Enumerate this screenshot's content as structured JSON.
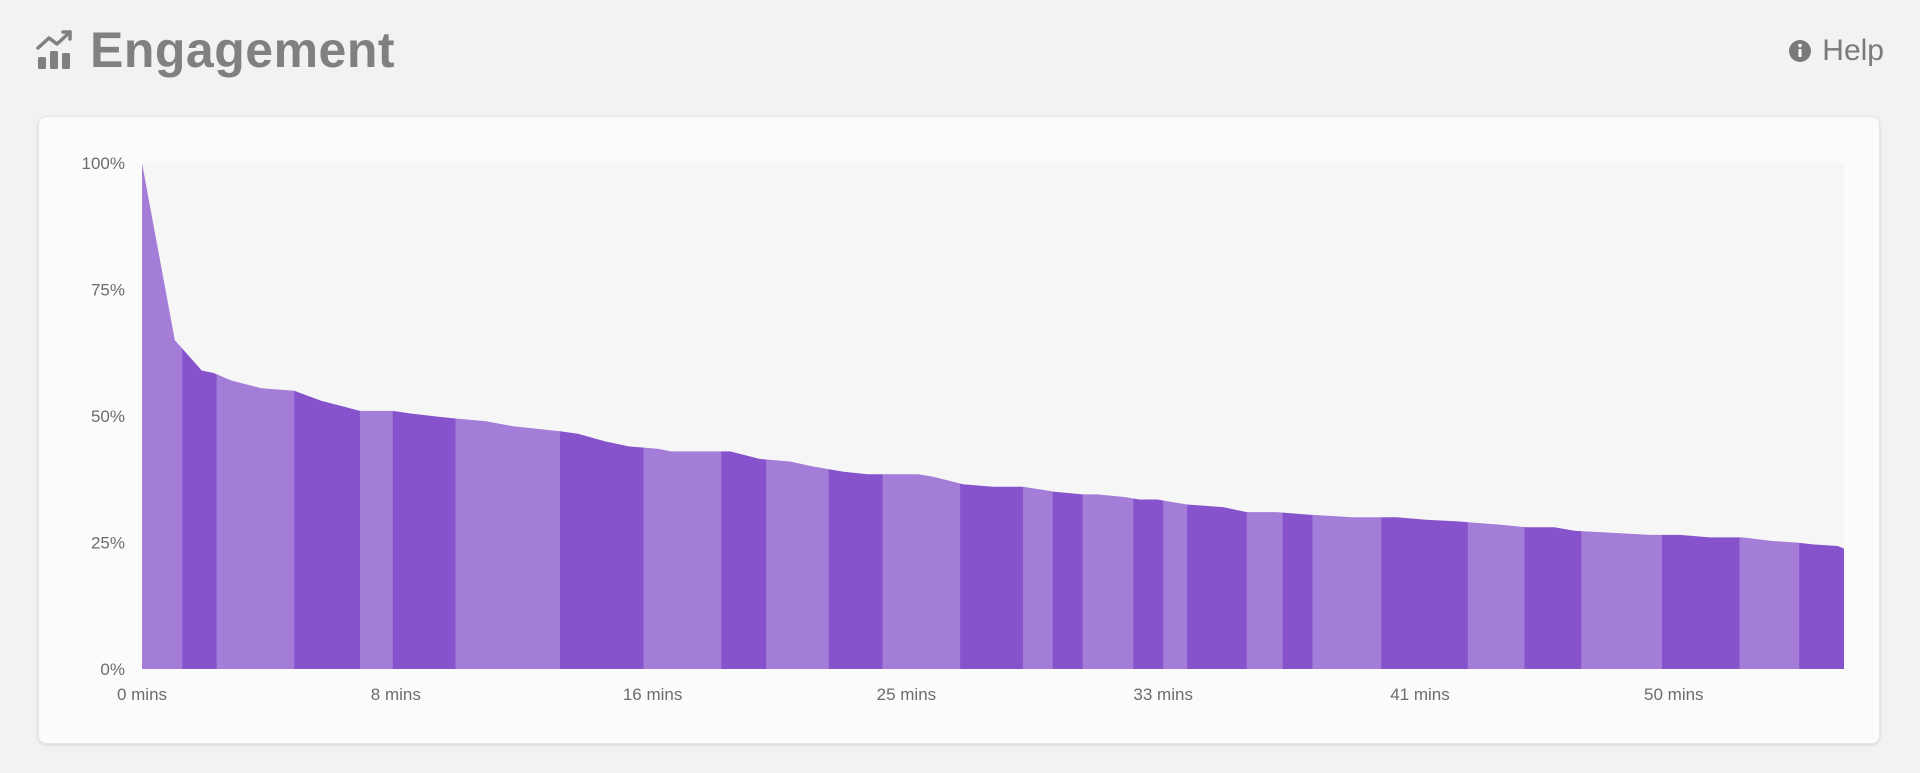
{
  "header": {
    "title": "Engagement",
    "title_icon": "chart-trend-icon",
    "help_label": "Help",
    "help_icon": "info-circle-icon"
  },
  "colors": {
    "background": "#f2f2f2",
    "title": "#808080",
    "plot_bg": "#f6f6f6",
    "band_light": "#a47dd8",
    "band_dark": "#8753cc"
  },
  "chart_data": {
    "type": "area",
    "title": "Engagement",
    "xlabel": "",
    "ylabel": "",
    "xlim": [
      0,
      57
    ],
    "ylim": [
      0,
      100
    ],
    "y_ticks": [
      "0%",
      "25%",
      "50%",
      "75%",
      "100%"
    ],
    "x_ticks": [
      {
        "value": 0,
        "label": "0 mins"
      },
      {
        "value": 8.5,
        "label": "8 mins"
      },
      {
        "value": 17.1,
        "label": "16 mins"
      },
      {
        "value": 25.6,
        "label": "25 mins"
      },
      {
        "value": 34.2,
        "label": "33 mins"
      },
      {
        "value": 42.8,
        "label": "41 mins"
      },
      {
        "value": 51.3,
        "label": "50 mins"
      }
    ],
    "points": [
      [
        0,
        100
      ],
      [
        1.1,
        65
      ],
      [
        1.4,
        63
      ],
      [
        2.0,
        59
      ],
      [
        2.4,
        58.5
      ],
      [
        3.0,
        57
      ],
      [
        4.0,
        55.5
      ],
      [
        5.1,
        55
      ],
      [
        6.0,
        53
      ],
      [
        7.3,
        51
      ],
      [
        8.4,
        51
      ],
      [
        9.0,
        50.5
      ],
      [
        10.0,
        49.8
      ],
      [
        10.5,
        49.5
      ],
      [
        11.5,
        49
      ],
      [
        12.4,
        48
      ],
      [
        14.0,
        47
      ],
      [
        14.6,
        46.5
      ],
      [
        15.5,
        45
      ],
      [
        16.3,
        44
      ],
      [
        17.3,
        43.5
      ],
      [
        17.7,
        43
      ],
      [
        19.7,
        43
      ],
      [
        20.7,
        41.5
      ],
      [
        21.7,
        41
      ],
      [
        22.5,
        40
      ],
      [
        23.5,
        39
      ],
      [
        24.3,
        38.5
      ],
      [
        24.6,
        38.5
      ],
      [
        26.0,
        38.5
      ],
      [
        26.5,
        38
      ],
      [
        27.5,
        36.5
      ],
      [
        28.5,
        36
      ],
      [
        29.5,
        36
      ],
      [
        30.6,
        35
      ],
      [
        31.5,
        34.5
      ],
      [
        32.0,
        34.5
      ],
      [
        32.9,
        34
      ],
      [
        33.4,
        33.5
      ],
      [
        34.0,
        33.5
      ],
      [
        35.0,
        32.5
      ],
      [
        36.2,
        32
      ],
      [
        37.0,
        31
      ],
      [
        38.0,
        31
      ],
      [
        39.1,
        30.5
      ],
      [
        40.0,
        30.2
      ],
      [
        40.5,
        30
      ],
      [
        42.0,
        30
      ],
      [
        43.0,
        29.5
      ],
      [
        44.0,
        29.2
      ],
      [
        45.5,
        28.5
      ],
      [
        46.4,
        28
      ],
      [
        47.3,
        28
      ],
      [
        48.0,
        27.3
      ],
      [
        49.0,
        27
      ],
      [
        50.5,
        26.5
      ],
      [
        51.5,
        26.5
      ],
      [
        52.5,
        26
      ],
      [
        53.6,
        26
      ],
      [
        54.6,
        25.3
      ],
      [
        55.4,
        25
      ],
      [
        56.0,
        24.6
      ],
      [
        56.8,
        24.3
      ],
      [
        57,
        23.8
      ]
    ],
    "band_edges": [
      0,
      1.35,
      2.5,
      5.1,
      7.3,
      8.4,
      10.5,
      14.0,
      16.8,
      19.4,
      20.9,
      23.0,
      24.8,
      27.4,
      29.5,
      30.5,
      31.5,
      33.2,
      34.2,
      35.0,
      37.0,
      38.2,
      39.2,
      41.5,
      44.4,
      46.3,
      48.2,
      50.9,
      53.5,
      55.5,
      57
    ]
  }
}
